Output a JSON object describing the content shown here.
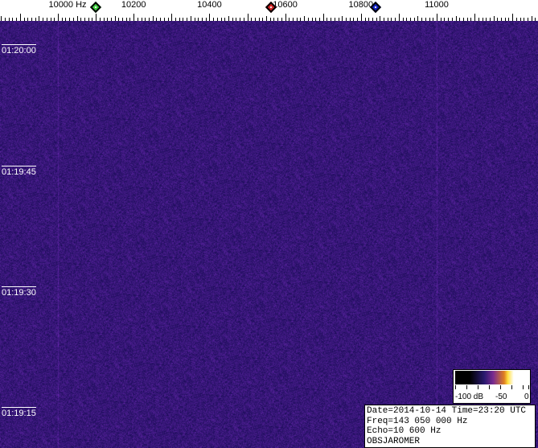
{
  "frequency_axis": {
    "labels": [
      "10000 Hz",
      "10200",
      "10400",
      "10600",
      "10800",
      "11000"
    ],
    "label_values": [
      10000,
      10200,
      10400,
      10600,
      10800,
      11000
    ],
    "unit": "Hz"
  },
  "markers": [
    {
      "name": "green-marker",
      "color": "#40d040",
      "freq_hz": 10100
    },
    {
      "name": "red-marker",
      "color": "#d02020",
      "freq_hz": 10562
    },
    {
      "name": "blue-marker",
      "color": "#1020c0",
      "freq_hz": 10838
    }
  ],
  "time_labels": [
    "01:20:00",
    "01:19:45",
    "01:19:30",
    "01:19:15"
  ],
  "colorbar": {
    "labels": [
      "-100 dB",
      "-50",
      "0"
    ]
  },
  "info": {
    "date_time": "Date=2014-10-14 Time=23:20 UTC",
    "freq": "Freq=143 050 000 Hz",
    "echo": "Echo=10 600 Hz",
    "observer": "OBSJAROMER"
  },
  "colors": {
    "background": "#2a1470",
    "carrier_line": "#8a2a8a"
  }
}
